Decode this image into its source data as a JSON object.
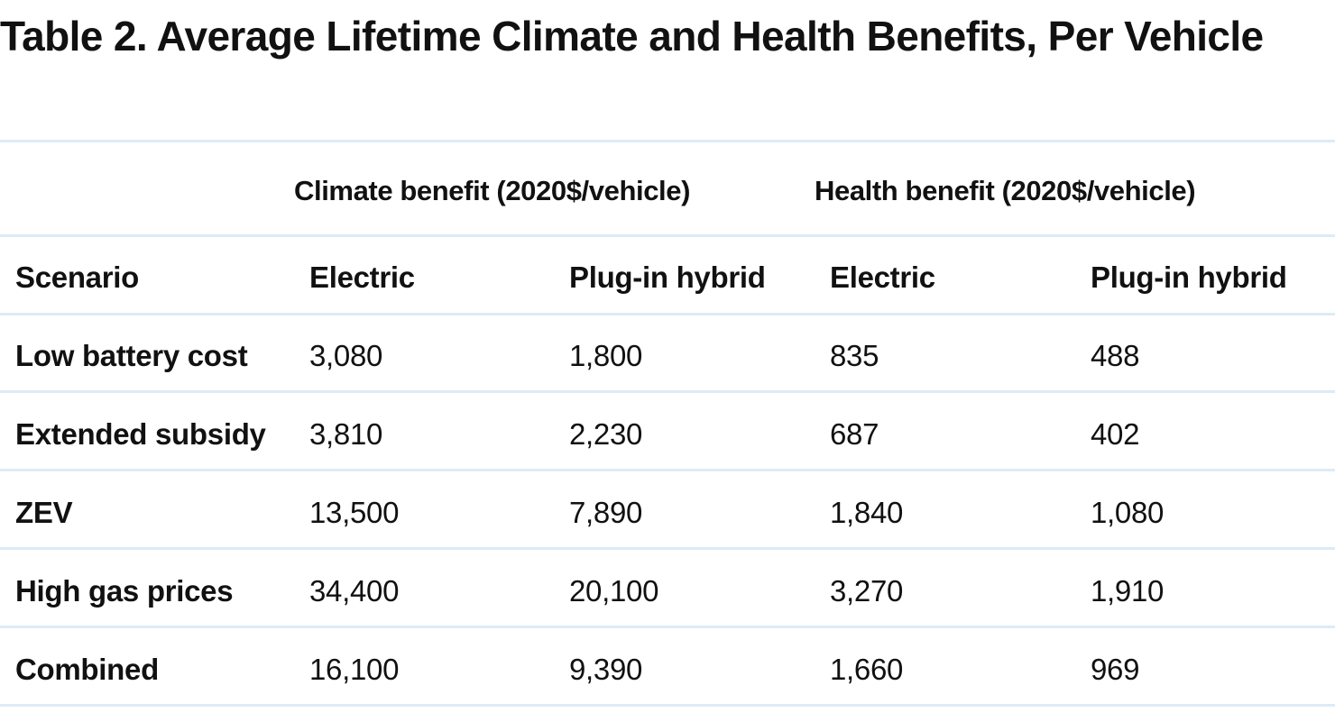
{
  "title": "Table 2.  Average Lifetime Climate and Health Benefits, Per Vehicle",
  "table": {
    "group_headers": {
      "climate": "Climate benefit (2020$/vehicle)",
      "health": "Health benefit (2020$/vehicle)"
    },
    "columns": [
      "Scenario",
      "Electric",
      "Plug-in hybrid",
      "Electric",
      "Plug-in hybrid"
    ],
    "rows": [
      {
        "scenario": "Low battery cost",
        "values": [
          "3,080",
          "1,800",
          "835",
          "488"
        ]
      },
      {
        "scenario": "Extended subsidy",
        "values": [
          "3,810",
          "2,230",
          "687",
          "402"
        ]
      },
      {
        "scenario": "ZEV",
        "values": [
          "13,500",
          "7,890",
          "1,840",
          "1,080"
        ]
      },
      {
        "scenario": "High gas prices",
        "values": [
          "34,400",
          "20,100",
          "3,270",
          "1,910"
        ]
      },
      {
        "scenario": "Combined",
        "values": [
          "16,100",
          "9,390",
          "1,660",
          "969"
        ]
      }
    ]
  },
  "colors": {
    "text": "#111111",
    "rule": "#deebf6"
  }
}
